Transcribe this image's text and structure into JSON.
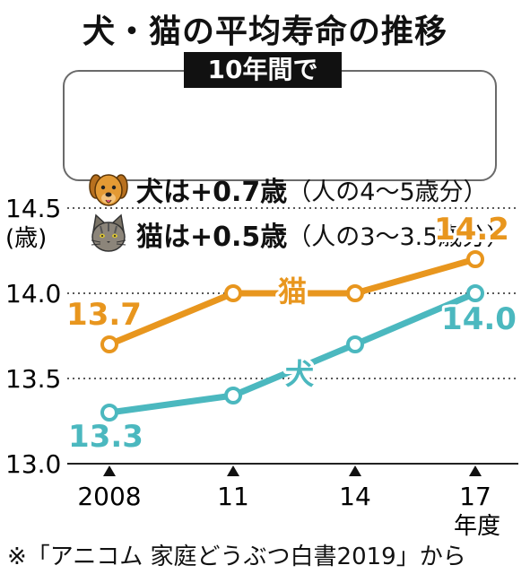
{
  "title": "犬・猫の平均寿命の推移",
  "summary": {
    "period": "10年間で",
    "dog": {
      "main": "犬は+0.7歳",
      "note": "（人の4～5歳分）",
      "icon": "dog-icon"
    },
    "cat": {
      "main": "猫は+0.5歳",
      "note": "（人の3～3.5歳分）",
      "icon": "cat-icon"
    }
  },
  "source": "※「アニコム 家庭どうぶつ白書2019」から",
  "colors": {
    "cat": "#e8961e",
    "dog": "#4bb8bf",
    "grid": "#222222"
  },
  "chart_data": {
    "type": "line",
    "x": [
      2008,
      2011,
      2014,
      2017
    ],
    "x_tick_labels": [
      "2008",
      "11",
      "14",
      "17"
    ],
    "x_unit_label": "年度",
    "y_tick_labels": [
      "13.0",
      "13.5",
      "14.0",
      "14.5"
    ],
    "y_unit_label": "(歳)",
    "ylim": [
      13.0,
      14.5
    ],
    "grid": "horizontal-dotted",
    "series": [
      {
        "name": "猫",
        "values": [
          13.7,
          14.0,
          14.0,
          14.2
        ],
        "labels": {
          "0": "13.7",
          "3": "14.2"
        }
      },
      {
        "name": "犬",
        "values": [
          13.3,
          13.4,
          13.7,
          14.0
        ],
        "labels": {
          "0": "13.3",
          "3": "14.0"
        }
      }
    ]
  }
}
